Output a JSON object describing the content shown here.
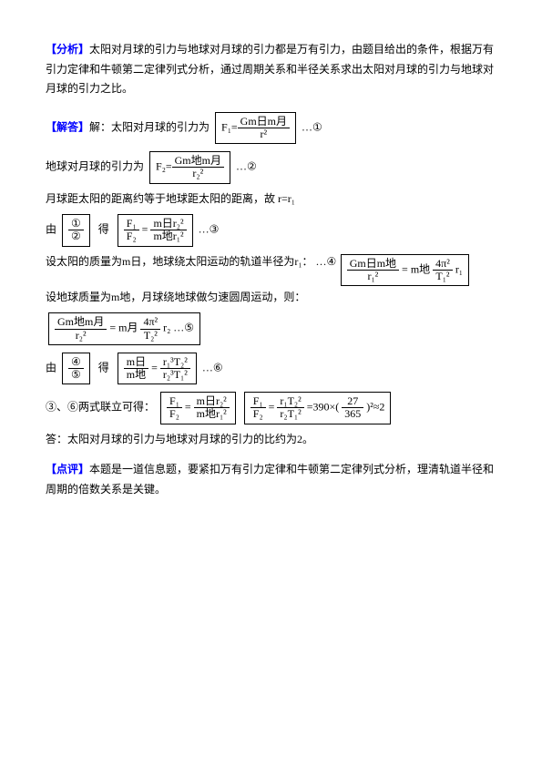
{
  "section1": {
    "heading": "【分析】",
    "text": "太阳对月球的引力与地球对月球的引力都是万有引力，由题目给出的条件，根据万有引力定律和牛顿第二定律列式分析，通过周期关系和半径关系求出太阳对月球的引力与地球对月球的引力之比。"
  },
  "section2": {
    "heading": "【解答】",
    "line1_pre": "解：太阳对月球的引力为 ",
    "formula1": {
      "lhs": "F₁=",
      "num": "Gm日m月",
      "den": "r²"
    },
    "line1_post": " …①",
    "line2_pre": "地球对月球的引力为 ",
    "formula2": {
      "lhs": "F₂=",
      "num": "Gm地m月",
      "den": "r₂²"
    },
    "line2_post": " …②",
    "line3": "月球距太阳的距离约等于地球距太阳的距离，故 r=r₁",
    "line4_pre": "由",
    "ratio_circles": {
      "top": "①",
      "bot": "②"
    },
    "ratio_formula": {
      "left": {
        "num": "F₁",
        "den": "F₂"
      },
      "eq": "=",
      "right": {
        "num": "m日r₂²",
        "den": "m地r₁²"
      }
    },
    "line4_post": " …③",
    "line5_pre": "设太阳的质量为m日，地球绕太阳运动的轨道半径为r₁：",
    "formula3": {
      "lhs_num": "Gm日m地",
      "lhs_den": "r₁²",
      "eq": "=",
      "rhs": "m地",
      "rhs_num": "4π²",
      "rhs_den": "T₁²",
      "tail": "r₁"
    },
    "line5_post": " …④",
    "line6": "设地球质量为m地，月球绕地球做匀速圆周运动，则：",
    "formula4": {
      "lhs_num": "Gm地m月",
      "lhs_den": "r₂²",
      "eq": "=",
      "rhs": "m月",
      "rhs_num": "4π²",
      "rhs_den": "T₂²",
      "tail": "r₂ …⑤"
    },
    "line7_pre": "由",
    "ratio2_circles": {
      "top": "④",
      "bot": "⑤"
    },
    "ratio2_formula": {
      "left": {
        "num": "m日",
        "den": "m地"
      },
      "eq": "=",
      "right": {
        "num": "r₁³T₂²",
        "den": "r₂³T₁²"
      }
    },
    "line7_post": " …⑥",
    "line8_pre": "③、⑥两式联立可得： ",
    "formula5a": {
      "left_num": "F₁",
      "left_den": "F₂",
      "eq": "=",
      "right_num": "m日r₂²",
      "right_den": "m地r₁²"
    },
    "formula5b": {
      "left_num": "F₁",
      "left_den": "F₂",
      "eq": "=",
      "mid_num": "r₁T₂²",
      "mid_den": "r₂T₁²",
      "val": "=390×(",
      "f_num": "27",
      "f_den": "365",
      "tail": ")²≈2"
    },
    "line9": "答：太阳对月球的引力与地球对月球的引力的比约为2。"
  },
  "section3": {
    "heading": "【点评】",
    "text": "本题是一道信息题，要紧扣万有引力定律和牛顿第二定律列式分析，理清轨道半径和周期的倍数关系是关键。"
  }
}
